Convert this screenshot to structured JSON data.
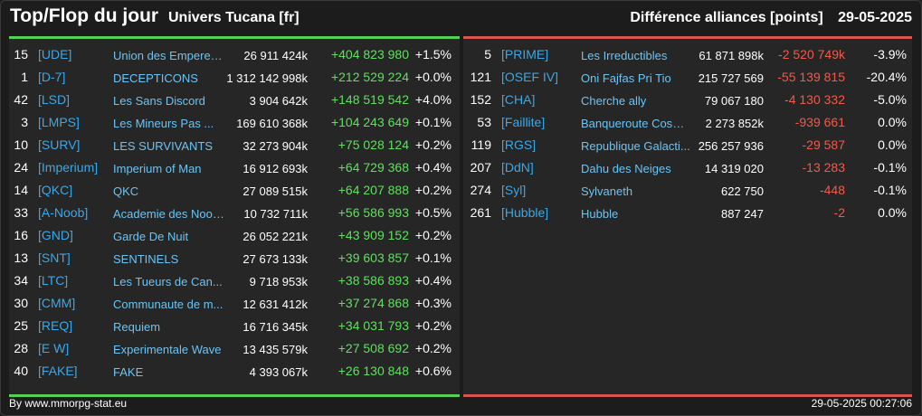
{
  "header": {
    "title": "Top/Flop du jour",
    "subtitle": "Univers Tucana [fr]",
    "right_label": "Différence alliances [points]",
    "date": "29-05-2025"
  },
  "colors": {
    "positive": "#5fe05f",
    "negative": "#f05a4a",
    "tag": "#3aa8e8",
    "top_bar": "#53d153",
    "flop_bar": "#d9534f"
  },
  "top": [
    {
      "rank": "15",
      "tag": "[UDE]",
      "name": "Union des Empereur...",
      "points": "26 911 424k",
      "diff": "+404 823 980",
      "pct": "+1.5%"
    },
    {
      "rank": "1",
      "tag": "[D-7]",
      "name": "DECEPTICONS",
      "points": "1 312 142 998k",
      "diff": "+212 529 224",
      "pct": "+0.0%"
    },
    {
      "rank": "42",
      "tag": "[LSD]",
      "name": "Les Sans Discord",
      "points": "3 904 642k",
      "diff": "+148 519 542",
      "pct": "+4.0%"
    },
    {
      "rank": "3",
      "tag": "[LMPS]",
      "name": "Les Mineurs Pas ...",
      "points": "169 610 368k",
      "diff": "+104 243 649",
      "pct": "+0.1%"
    },
    {
      "rank": "10",
      "tag": "[SURV]",
      "name": "LES SURVIVANTS",
      "points": "32 273 904k",
      "diff": "+75 028 124",
      "pct": "+0.2%"
    },
    {
      "rank": "24",
      "tag": "[Imperium]",
      "name": "Imperium of Man",
      "points": "16 912 693k",
      "diff": "+64 729 368",
      "pct": "+0.4%"
    },
    {
      "rank": "14",
      "tag": "[QKC]",
      "name": "QKC",
      "points": "27 089 515k",
      "diff": "+64 207 888",
      "pct": "+0.2%"
    },
    {
      "rank": "33",
      "tag": "[A-Noob]",
      "name": "Academie des Noob...",
      "points": "10 732 711k",
      "diff": "+56 586 993",
      "pct": "+0.5%"
    },
    {
      "rank": "16",
      "tag": "[GND]",
      "name": "Garde De Nuit",
      "points": "26 052 221k",
      "diff": "+43 909 152",
      "pct": "+0.2%"
    },
    {
      "rank": "13",
      "tag": "[SNT]",
      "name": "SENTINELS",
      "points": "27 673 133k",
      "diff": "+39 603 857",
      "pct": "+0.1%"
    },
    {
      "rank": "34",
      "tag": "[LTC]",
      "name": "Les Tueurs de Can...",
      "points": "9 718 953k",
      "diff": "+38 586 893",
      "pct": "+0.4%"
    },
    {
      "rank": "30",
      "tag": "[CMM]",
      "name": "Communaute de m...",
      "points": "12 631 412k",
      "diff": "+37 274 868",
      "pct": "+0.3%"
    },
    {
      "rank": "25",
      "tag": "[REQ]",
      "name": "Requiem",
      "points": "16 716 345k",
      "diff": "+34 031 793",
      "pct": "+0.2%"
    },
    {
      "rank": "28",
      "tag": "[E W]",
      "name": "Experimentale Wave",
      "points": "13 435 579k",
      "diff": "+27 508 692",
      "pct": "+0.2%"
    },
    {
      "rank": "40",
      "tag": "[FAKE]",
      "name": "FAKE",
      "points": "4 393 067k",
      "diff": "+26 130 848",
      "pct": "+0.6%"
    }
  ],
  "flop": [
    {
      "rank": "5",
      "tag": "[PRIME]",
      "name": "Les Irreductibles",
      "points": "61 871 898k",
      "diff": "-2 520 749k",
      "pct": "-3.9%"
    },
    {
      "rank": "121",
      "tag": "[OSEF IV]",
      "name": "Oni Fajfas Pri Tio",
      "points": "215 727 569",
      "diff": "-55 139 815",
      "pct": "-20.4%"
    },
    {
      "rank": "152",
      "tag": "[CHA]",
      "name": "Cherche ally",
      "points": "79 067 180",
      "diff": "-4 130 332",
      "pct": "-5.0%"
    },
    {
      "rank": "53",
      "tag": "[Faillite]",
      "name": "Banqueroute Cosm...",
      "points": "2 273 852k",
      "diff": "-939 661",
      "pct": "0.0%"
    },
    {
      "rank": "119",
      "tag": "[RGS]",
      "name": "Republique Galacti...",
      "points": "256 257 936",
      "diff": "-29 587",
      "pct": "0.0%"
    },
    {
      "rank": "207",
      "tag": "[DdN]",
      "name": "Dahu des Neiges",
      "points": "14 319 020",
      "diff": "-13 283",
      "pct": "-0.1%"
    },
    {
      "rank": "274",
      "tag": "[Syl]",
      "name": "Sylvaneth",
      "points": "622 750",
      "diff": "-448",
      "pct": "-0.1%"
    },
    {
      "rank": "261",
      "tag": "[Hubble]",
      "name": "Hubble",
      "points": "887 247",
      "diff": "-2",
      "pct": "0.0%"
    }
  ],
  "footer": {
    "credit": "By www.mmorpg-stat.eu",
    "timestamp": "29-05-2025 00:27:06"
  }
}
